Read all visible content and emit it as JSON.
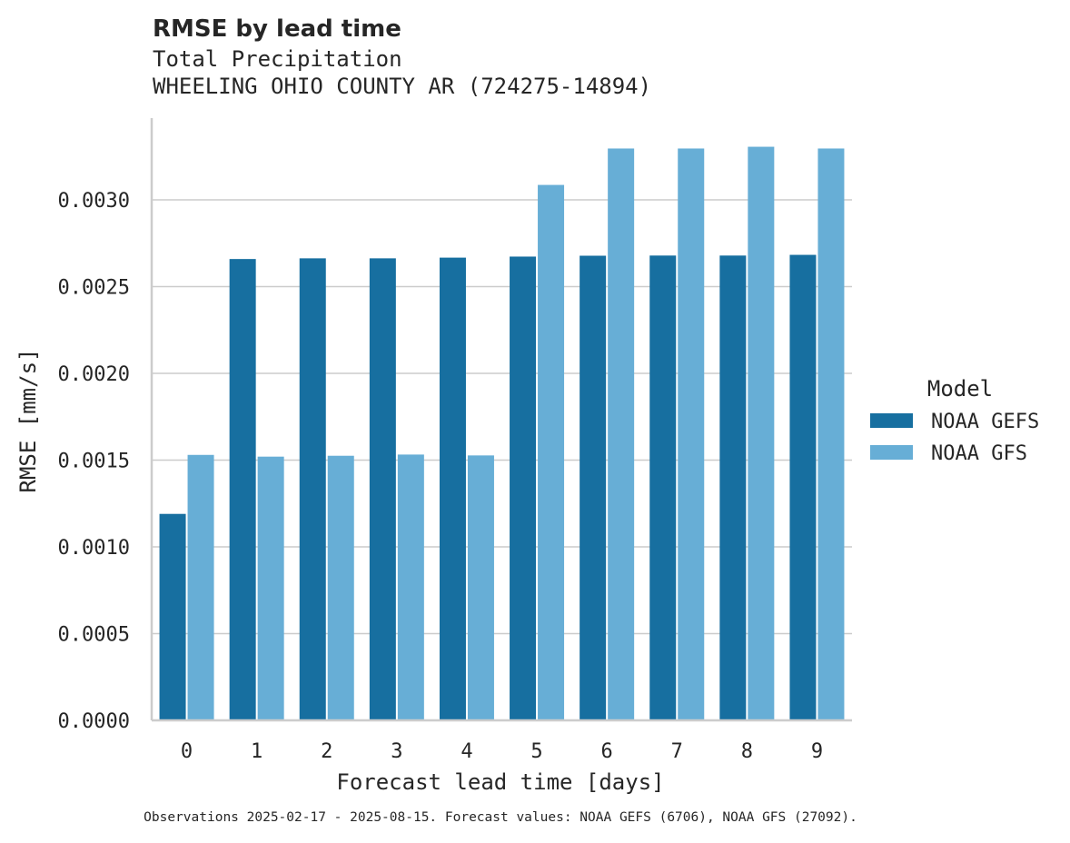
{
  "colors": {
    "gefs": "#176fa0",
    "gfs": "#67aed6",
    "grid": "#cccccc",
    "axis": "#cccccc",
    "text": "#262626"
  },
  "chart_data": {
    "type": "bar",
    "title": "RMSE by lead time",
    "subtitle": "Total Precipitation\nWHEELING OHIO COUNTY AR (724275-14894)",
    "xlabel": "Forecast lead time [days]",
    "ylabel": "RMSE [mm/s]",
    "categories": [
      "0",
      "1",
      "2",
      "3",
      "4",
      "5",
      "6",
      "7",
      "8",
      "9"
    ],
    "series": [
      {
        "name": "NOAA GEFS",
        "color": "#176fa0",
        "values": [
          0.00119,
          0.002659,
          0.002663,
          0.002663,
          0.002667,
          0.002673,
          0.002678,
          0.002679,
          0.002679,
          0.002683
        ]
      },
      {
        "name": "NOAA GFS",
        "color": "#67aed6",
        "values": [
          0.00153,
          0.00152,
          0.001525,
          0.001532,
          0.001527,
          0.003086,
          0.003296,
          0.003296,
          0.003306,
          0.003296
        ]
      }
    ],
    "ylim": [
      0,
      0.0035
    ],
    "yticks": [
      "0.0000",
      "0.0005",
      "0.0010",
      "0.0015",
      "0.0020",
      "0.0025",
      "0.0030"
    ],
    "grid": true,
    "legend": {
      "title": "Model",
      "placement": "right"
    },
    "footnote": "Observations 2025-02-17 - 2025-08-15. Forecast values: NOAA GEFS (6706), NOAA GFS (27092)."
  }
}
